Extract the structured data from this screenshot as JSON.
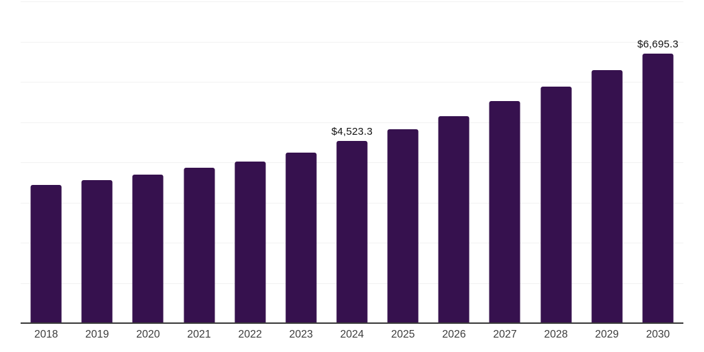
{
  "chart_data": {
    "type": "bar",
    "title": "",
    "xlabel": "",
    "ylabel": "",
    "categories": [
      "2018",
      "2019",
      "2020",
      "2021",
      "2022",
      "2023",
      "2024",
      "2025",
      "2026",
      "2027",
      "2028",
      "2029",
      "2030"
    ],
    "values": [
      3428,
      3563,
      3694,
      3871,
      4013,
      4235,
      4523.3,
      4826,
      5150,
      5519,
      5889,
      6287,
      6695.3
    ],
    "value_labels": [
      null,
      null,
      null,
      null,
      null,
      null,
      "$4,523.3",
      null,
      null,
      null,
      null,
      null,
      "$6,695.3"
    ],
    "currency_prefix": "$",
    "ylim": [
      0,
      8000
    ],
    "grid_interval": 1000,
    "grid_on": true,
    "legend": "none",
    "colors": {
      "bar": "#36114E",
      "gridline": "#f2f2f2",
      "axis_line": "#3a3a3a",
      "tick_label": "#3c3c3c",
      "data_label": "#111111",
      "background": "#ffffff"
    }
  }
}
